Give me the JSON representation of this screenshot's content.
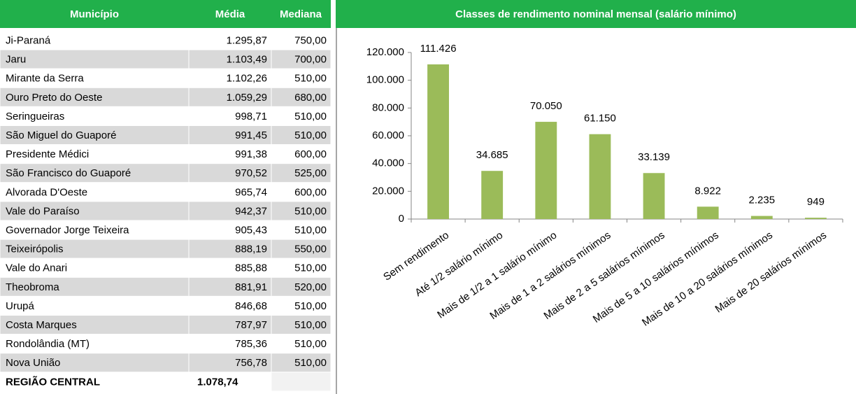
{
  "table": {
    "columns": [
      "Município",
      "Média",
      "Mediana"
    ],
    "rows": [
      [
        "Ji-Paraná",
        "1.295,87",
        "750,00"
      ],
      [
        "Jaru",
        "1.103,49",
        "700,00"
      ],
      [
        "Mirante da Serra",
        "1.102,26",
        "510,00"
      ],
      [
        "Ouro Preto do Oeste",
        "1.059,29",
        "680,00"
      ],
      [
        "Seringueiras",
        "998,71",
        "510,00"
      ],
      [
        "São Miguel do Guaporé",
        "991,45",
        "510,00"
      ],
      [
        "Presidente Médici",
        "991,38",
        "600,00"
      ],
      [
        "São Francisco do Guaporé",
        "970,52",
        "525,00"
      ],
      [
        "Alvorada D'Oeste",
        "965,74",
        "600,00"
      ],
      [
        "Vale do Paraíso",
        "942,37",
        "510,00"
      ],
      [
        "Governador Jorge Teixeira",
        "905,43",
        "510,00"
      ],
      [
        "Teixeirópolis",
        "888,19",
        "550,00"
      ],
      [
        "Vale do Anari",
        "885,88",
        "510,00"
      ],
      [
        "Theobroma",
        "881,91",
        "520,00"
      ],
      [
        "Urupá",
        "846,68",
        "510,00"
      ],
      [
        "Costa Marques",
        "787,97",
        "510,00"
      ],
      [
        "Rondolândia (MT)",
        "785,36",
        "510,00"
      ],
      [
        "Nova União",
        "756,78",
        "510,00"
      ],
      [
        "REGIÃO CENTRAL",
        "1.078,74"
      ]
    ]
  },
  "chart_data": {
    "type": "bar",
    "title": "Classes de rendimento nominal mensal (salário mínimo)",
    "categories": [
      "Sem rendimento",
      "Até 1/2 salário mínimo",
      "Mais de 1/2 a 1 salário mínimo",
      "Mais de 1 a 2 salários mínimos",
      "Mais de 2 a 5 salários mínimos",
      "Mais de 5 a 10 salários mínimos",
      "Mais de 10 a 20 salários mínimos",
      "Mais de 20 salários mínimos"
    ],
    "values": [
      111426,
      34685,
      70050,
      61150,
      33139,
      8922,
      2235,
      949
    ],
    "value_labels": [
      "111.426",
      "34.685",
      "70.050",
      "61.150",
      "33.139",
      "8.922",
      "2.235",
      "949"
    ],
    "color": "#9bbb59",
    "ylim": [
      0,
      120000
    ],
    "yticks": [
      0,
      {
        "value": 20000,
        "label": "20.000"
      },
      {
        "value": 40000,
        "label": "40.000"
      },
      {
        "value": 60000,
        "label": "60.000"
      },
      {
        "value": 80000,
        "label": "80.000"
      },
      {
        "value": 100000,
        "label": "100.000"
      },
      {
        "value": 120000,
        "label": "120.000"
      }
    ],
    "grid": false
  }
}
